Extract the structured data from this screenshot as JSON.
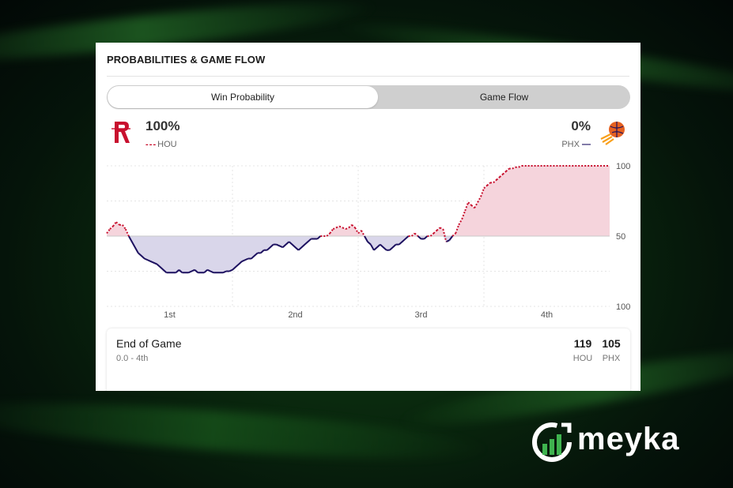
{
  "card": {
    "title": "PROBABILITIES & GAME FLOW"
  },
  "toggle": {
    "win_probability": "Win Probability",
    "game_flow": "Game Flow",
    "selected": "Win Probability"
  },
  "home": {
    "abbr": "HOU",
    "pct": "100%",
    "legend_dash": "- - -",
    "color": "#c8102e"
  },
  "away": {
    "abbr": "PHX",
    "pct": "0%",
    "legend_dash": "—",
    "color": "#1d1160"
  },
  "chart_data": {
    "type": "area",
    "y_tick_labels": [
      "100",
      "50",
      "100"
    ],
    "x_tick_labels": [
      "1st",
      "2nd",
      "3rd",
      "4th"
    ],
    "ylim": [
      0,
      100
    ],
    "grid": true,
    "series": [
      {
        "name": "HOU",
        "color": "#c8102e",
        "x": [
          0,
          1,
          2,
          3,
          4,
          5,
          6,
          7,
          8,
          9,
          10,
          11,
          12,
          13,
          14,
          15,
          16,
          17,
          18,
          19,
          20,
          21,
          22,
          23,
          24,
          25,
          26,
          27,
          28,
          29,
          30,
          31,
          32,
          33,
          34,
          35,
          36,
          37,
          38,
          39,
          40,
          41,
          42,
          43,
          44,
          45,
          46,
          47,
          48,
          49,
          50,
          51,
          52,
          53,
          54,
          55,
          56,
          57,
          58,
          59,
          60,
          61,
          62,
          63,
          64,
          65,
          66,
          67,
          68,
          69,
          70,
          71,
          72,
          73,
          74,
          75,
          76,
          77,
          78,
          79,
          80,
          81,
          82,
          83,
          84,
          85,
          86,
          87,
          88,
          89,
          90,
          91,
          92,
          93,
          94,
          95,
          96,
          97,
          98,
          99,
          100,
          101,
          102,
          103,
          104,
          105,
          106,
          107,
          108,
          109,
          110,
          111,
          112,
          113,
          114,
          115,
          116,
          117,
          118,
          119,
          120,
          121,
          122,
          123,
          124,
          125,
          126,
          127,
          128,
          129,
          130,
          131,
          132,
          133,
          134,
          135,
          136,
          137,
          138,
          139,
          140,
          141,
          142,
          143,
          144,
          145,
          146,
          147,
          148,
          149,
          150,
          151,
          152,
          153,
          154,
          155,
          156,
          157,
          158,
          159,
          160
        ],
        "values": [
          52,
          55,
          57,
          60,
          58,
          58,
          55,
          50,
          46,
          42,
          38,
          36,
          34,
          33,
          32,
          31,
          30,
          28,
          26,
          24,
          24,
          24,
          24,
          26,
          24,
          24,
          24,
          25,
          26,
          24,
          24,
          24,
          26,
          25,
          24,
          24,
          24,
          24,
          25,
          25,
          26,
          28,
          30,
          32,
          33,
          34,
          34,
          36,
          38,
          38,
          40,
          40,
          42,
          44,
          44,
          43,
          42,
          44,
          46,
          44,
          42,
          40,
          42,
          44,
          46,
          48,
          48,
          48,
          50,
          50,
          50,
          52,
          55,
          56,
          57,
          56,
          55,
          56,
          58,
          56,
          52,
          54,
          50,
          46,
          44,
          40,
          42,
          44,
          42,
          40,
          40,
          42,
          44,
          44,
          46,
          48,
          50,
          50,
          52,
          50,
          48,
          48,
          50,
          50,
          52,
          54,
          56,
          55,
          46,
          47,
          50,
          52,
          58,
          62,
          68,
          74,
          72,
          70,
          74,
          78,
          84,
          86,
          88,
          88,
          90,
          92,
          94,
          96,
          98,
          98,
          99,
          99,
          100,
          100,
          100,
          100,
          100,
          100,
          100,
          100,
          100,
          100,
          100,
          100,
          100,
          100,
          100,
          100,
          100,
          100,
          100,
          100,
          100,
          100,
          100,
          100,
          100,
          100,
          100,
          100,
          100
        ]
      }
    ]
  },
  "summary": {
    "title": "End of Game",
    "subtitle": "0.0 - 4th",
    "home_score": "119",
    "away_score": "105",
    "home_abbr": "HOU",
    "away_abbr": "PHX"
  },
  "brand": {
    "name": "meyka"
  }
}
